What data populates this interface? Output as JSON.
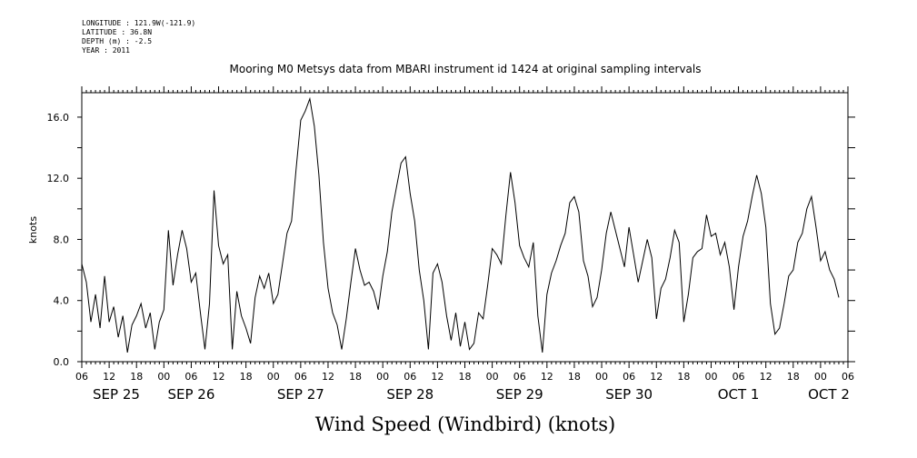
{
  "header": {
    "longitude": "LONGITUDE : 121.9W(-121.9)",
    "latitude": "LATITUDE : 36.8N",
    "depth": "DEPTH (m) : -2.5",
    "year": "YEAR : 2011"
  },
  "chart_data": {
    "type": "line",
    "title": "Mooring M0 Metsys data from MBARI instrument id 1424 at original sampling intervals",
    "xlabel": "Wind Speed (Windbird) (knots)",
    "ylabel": "knots",
    "ylim": [
      0,
      17.6
    ],
    "yticks": [
      "0.0",
      "4.0",
      "8.0",
      "12.0",
      "16.0"
    ],
    "xlim_hours": [
      0,
      168
    ],
    "xtick_hour_labels": [
      "06",
      "12",
      "18",
      "00",
      "06",
      "12",
      "18",
      "00",
      "06",
      "12",
      "18",
      "00",
      "06",
      "12",
      "18",
      "00",
      "06",
      "12",
      "18",
      "00",
      "06",
      "12",
      "18",
      "00",
      "06",
      "12",
      "18",
      "00",
      "06"
    ],
    "day_labels": [
      "SEP 25",
      "SEP 26",
      "SEP 27",
      "SEP 28",
      "SEP 29",
      "SEP 30",
      "OCT  1",
      "OCT  2"
    ],
    "grid": false,
    "series": [
      {
        "color": "#000000",
        "x_hours_from_sep25_06": [
          0,
          1,
          2,
          3,
          4,
          5,
          6,
          7,
          8,
          9,
          10,
          11,
          12,
          13,
          14,
          15,
          16,
          17,
          18,
          19,
          20,
          21,
          22,
          23,
          24,
          25,
          26,
          27,
          28,
          29,
          30,
          31,
          32,
          33,
          34,
          35,
          36,
          37,
          38,
          39,
          40,
          41,
          42,
          43,
          44,
          45,
          46,
          47,
          48,
          49,
          50,
          51,
          52,
          53,
          54,
          55,
          56,
          57,
          58,
          59,
          60,
          61,
          62,
          63,
          64,
          65,
          66,
          67,
          68,
          69,
          70,
          71,
          72,
          73,
          74,
          75,
          76,
          77,
          78,
          79,
          80,
          81,
          82,
          83,
          84,
          85,
          86,
          87,
          88,
          89,
          90,
          91,
          92,
          93,
          94,
          95,
          96,
          97,
          98,
          99,
          100,
          101,
          102,
          103,
          104,
          105,
          106,
          107,
          108,
          109,
          110,
          111,
          112,
          113,
          114,
          115,
          116,
          117,
          118,
          119,
          120,
          121,
          122,
          123,
          124,
          125,
          126,
          127,
          128,
          129,
          130,
          131,
          132,
          133,
          134,
          135,
          136,
          137,
          138,
          139,
          140,
          141,
          142,
          143,
          144,
          145,
          146,
          147,
          148,
          149,
          150,
          151,
          152,
          153,
          154,
          155,
          156,
          157,
          158,
          159,
          160,
          161,
          162,
          163,
          164,
          165,
          166,
          167,
          168
        ],
        "values": [
          6.4,
          5.2,
          2.6,
          4.4,
          2.2,
          5.6,
          2.6,
          3.6,
          1.6,
          3.0,
          0.6,
          2.4,
          3.0,
          3.8,
          2.2,
          3.2,
          0.8,
          2.6,
          3.4,
          8.6,
          5.0,
          7.0,
          8.6,
          7.4,
          5.2,
          5.8,
          3.2,
          0.8,
          3.8,
          11.2,
          7.6,
          6.4,
          7.0,
          0.8,
          4.6,
          3.0,
          2.2,
          1.2,
          4.2,
          5.6,
          4.8,
          5.8,
          3.8,
          4.4,
          6.4,
          8.4,
          9.2,
          12.6,
          15.8,
          16.4,
          17.2,
          15.4,
          12.2,
          7.8,
          4.8,
          3.2,
          2.4,
          0.8,
          2.8,
          5.2,
          7.4,
          6.0,
          5.0,
          5.2,
          4.6,
          3.4,
          5.6,
          7.2,
          9.8,
          11.4,
          13.0,
          13.4,
          11.0,
          9.2,
          6.0,
          4.0,
          0.8,
          5.8,
          6.4,
          5.2,
          3.0,
          1.4,
          3.2,
          1.0,
          2.6,
          0.8,
          1.2,
          3.2,
          2.8,
          5.0,
          7.4,
          7.0,
          6.4,
          9.6,
          12.4,
          10.4,
          7.6,
          6.8,
          6.2,
          7.8,
          3.0,
          0.6,
          4.4,
          5.8,
          6.6,
          7.6,
          8.4,
          10.4,
          10.8,
          9.8,
          6.6,
          5.6,
          3.6,
          4.2,
          6.0,
          8.4,
          9.8,
          8.6,
          7.4,
          6.2,
          8.8,
          7.0,
          5.2,
          6.6,
          8.0,
          6.8,
          2.8,
          4.8,
          5.4,
          6.8,
          8.6,
          7.8,
          2.6,
          4.4,
          6.8,
          7.2,
          7.4,
          9.6,
          8.2,
          8.4,
          7.0,
          7.8,
          6.2,
          3.4,
          6.2,
          8.2,
          9.2,
          10.8,
          12.2,
          11.0,
          8.8,
          3.8,
          1.8,
          2.2,
          3.8,
          5.6,
          6.0,
          7.8,
          8.4,
          10.0,
          10.8,
          8.8,
          6.6,
          7.2,
          6.0,
          5.4,
          4.2
        ]
      }
    ]
  }
}
